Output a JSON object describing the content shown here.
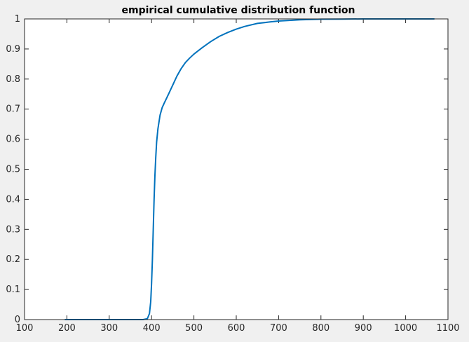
{
  "window": {
    "background": "#f0f0f0"
  },
  "chart_data": {
    "type": "line",
    "title": "empirical cumulative distribution function",
    "xlabel": "",
    "ylabel": "",
    "xlim": [
      100,
      1100
    ],
    "ylim": [
      0,
      1
    ],
    "xticks": [
      100,
      200,
      300,
      400,
      500,
      600,
      700,
      800,
      900,
      1000,
      1100
    ],
    "yticks": [
      0,
      0.1,
      0.2,
      0.3,
      0.4,
      0.5,
      0.6,
      0.7,
      0.8,
      0.9,
      1
    ],
    "xtick_labels": [
      "100",
      "200",
      "300",
      "400",
      "500",
      "600",
      "700",
      "800",
      "900",
      "1000",
      "1100"
    ],
    "ytick_labels": [
      "0",
      "0.1",
      "0.2",
      "0.3",
      "0.4",
      "0.5",
      "0.6",
      "0.7",
      "0.8",
      "0.9",
      "1"
    ],
    "grid": false,
    "legend": "none",
    "colors": {
      "line": "#0072bd",
      "axes": "#262626",
      "plot_background": "#ffffff",
      "figure_background": "#f0f0f0"
    },
    "series": [
      {
        "x": [
          195,
          300,
          380,
          390,
          395,
          398,
          400,
          402,
          404,
          406,
          408,
          410,
          412,
          415,
          420,
          425,
          430,
          440,
          450,
          460,
          470,
          480,
          490,
          500,
          520,
          540,
          560,
          580,
          600,
          620,
          650,
          680,
          700,
          750,
          800,
          850,
          900,
          950,
          1000,
          1068
        ],
        "y": [
          0.0,
          0.0,
          0.0,
          0.003,
          0.02,
          0.06,
          0.12,
          0.2,
          0.3,
          0.4,
          0.48,
          0.54,
          0.59,
          0.635,
          0.68,
          0.705,
          0.72,
          0.75,
          0.78,
          0.81,
          0.835,
          0.855,
          0.87,
          0.883,
          0.905,
          0.925,
          0.942,
          0.955,
          0.966,
          0.975,
          0.985,
          0.99,
          0.993,
          0.997,
          0.999,
          0.9995,
          1.0,
          1.0,
          1.0,
          1.0
        ]
      }
    ]
  }
}
